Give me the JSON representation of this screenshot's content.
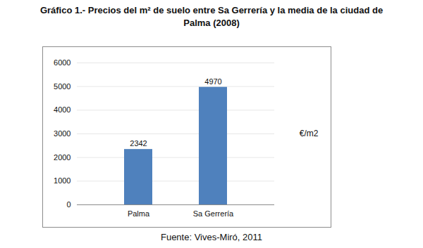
{
  "chart_data": {
    "type": "bar",
    "title": "Gráfico 1.- Precios del m² de suelo entre Sa Gerrería y la media de la ciudad de Palma (2008)",
    "categories": [
      "Palma",
      "Sa Gerrería"
    ],
    "values": [
      2342,
      4970
    ],
    "color": "#4f81bd",
    "y_label": "€/m2",
    "ylim": [
      0,
      6000
    ],
    "yticks": [
      0,
      1000,
      2000,
      3000,
      4000,
      5000,
      6000
    ],
    "grid": true,
    "data_labels": true,
    "caption": "Fuente: Vives-Miró, 2011"
  }
}
